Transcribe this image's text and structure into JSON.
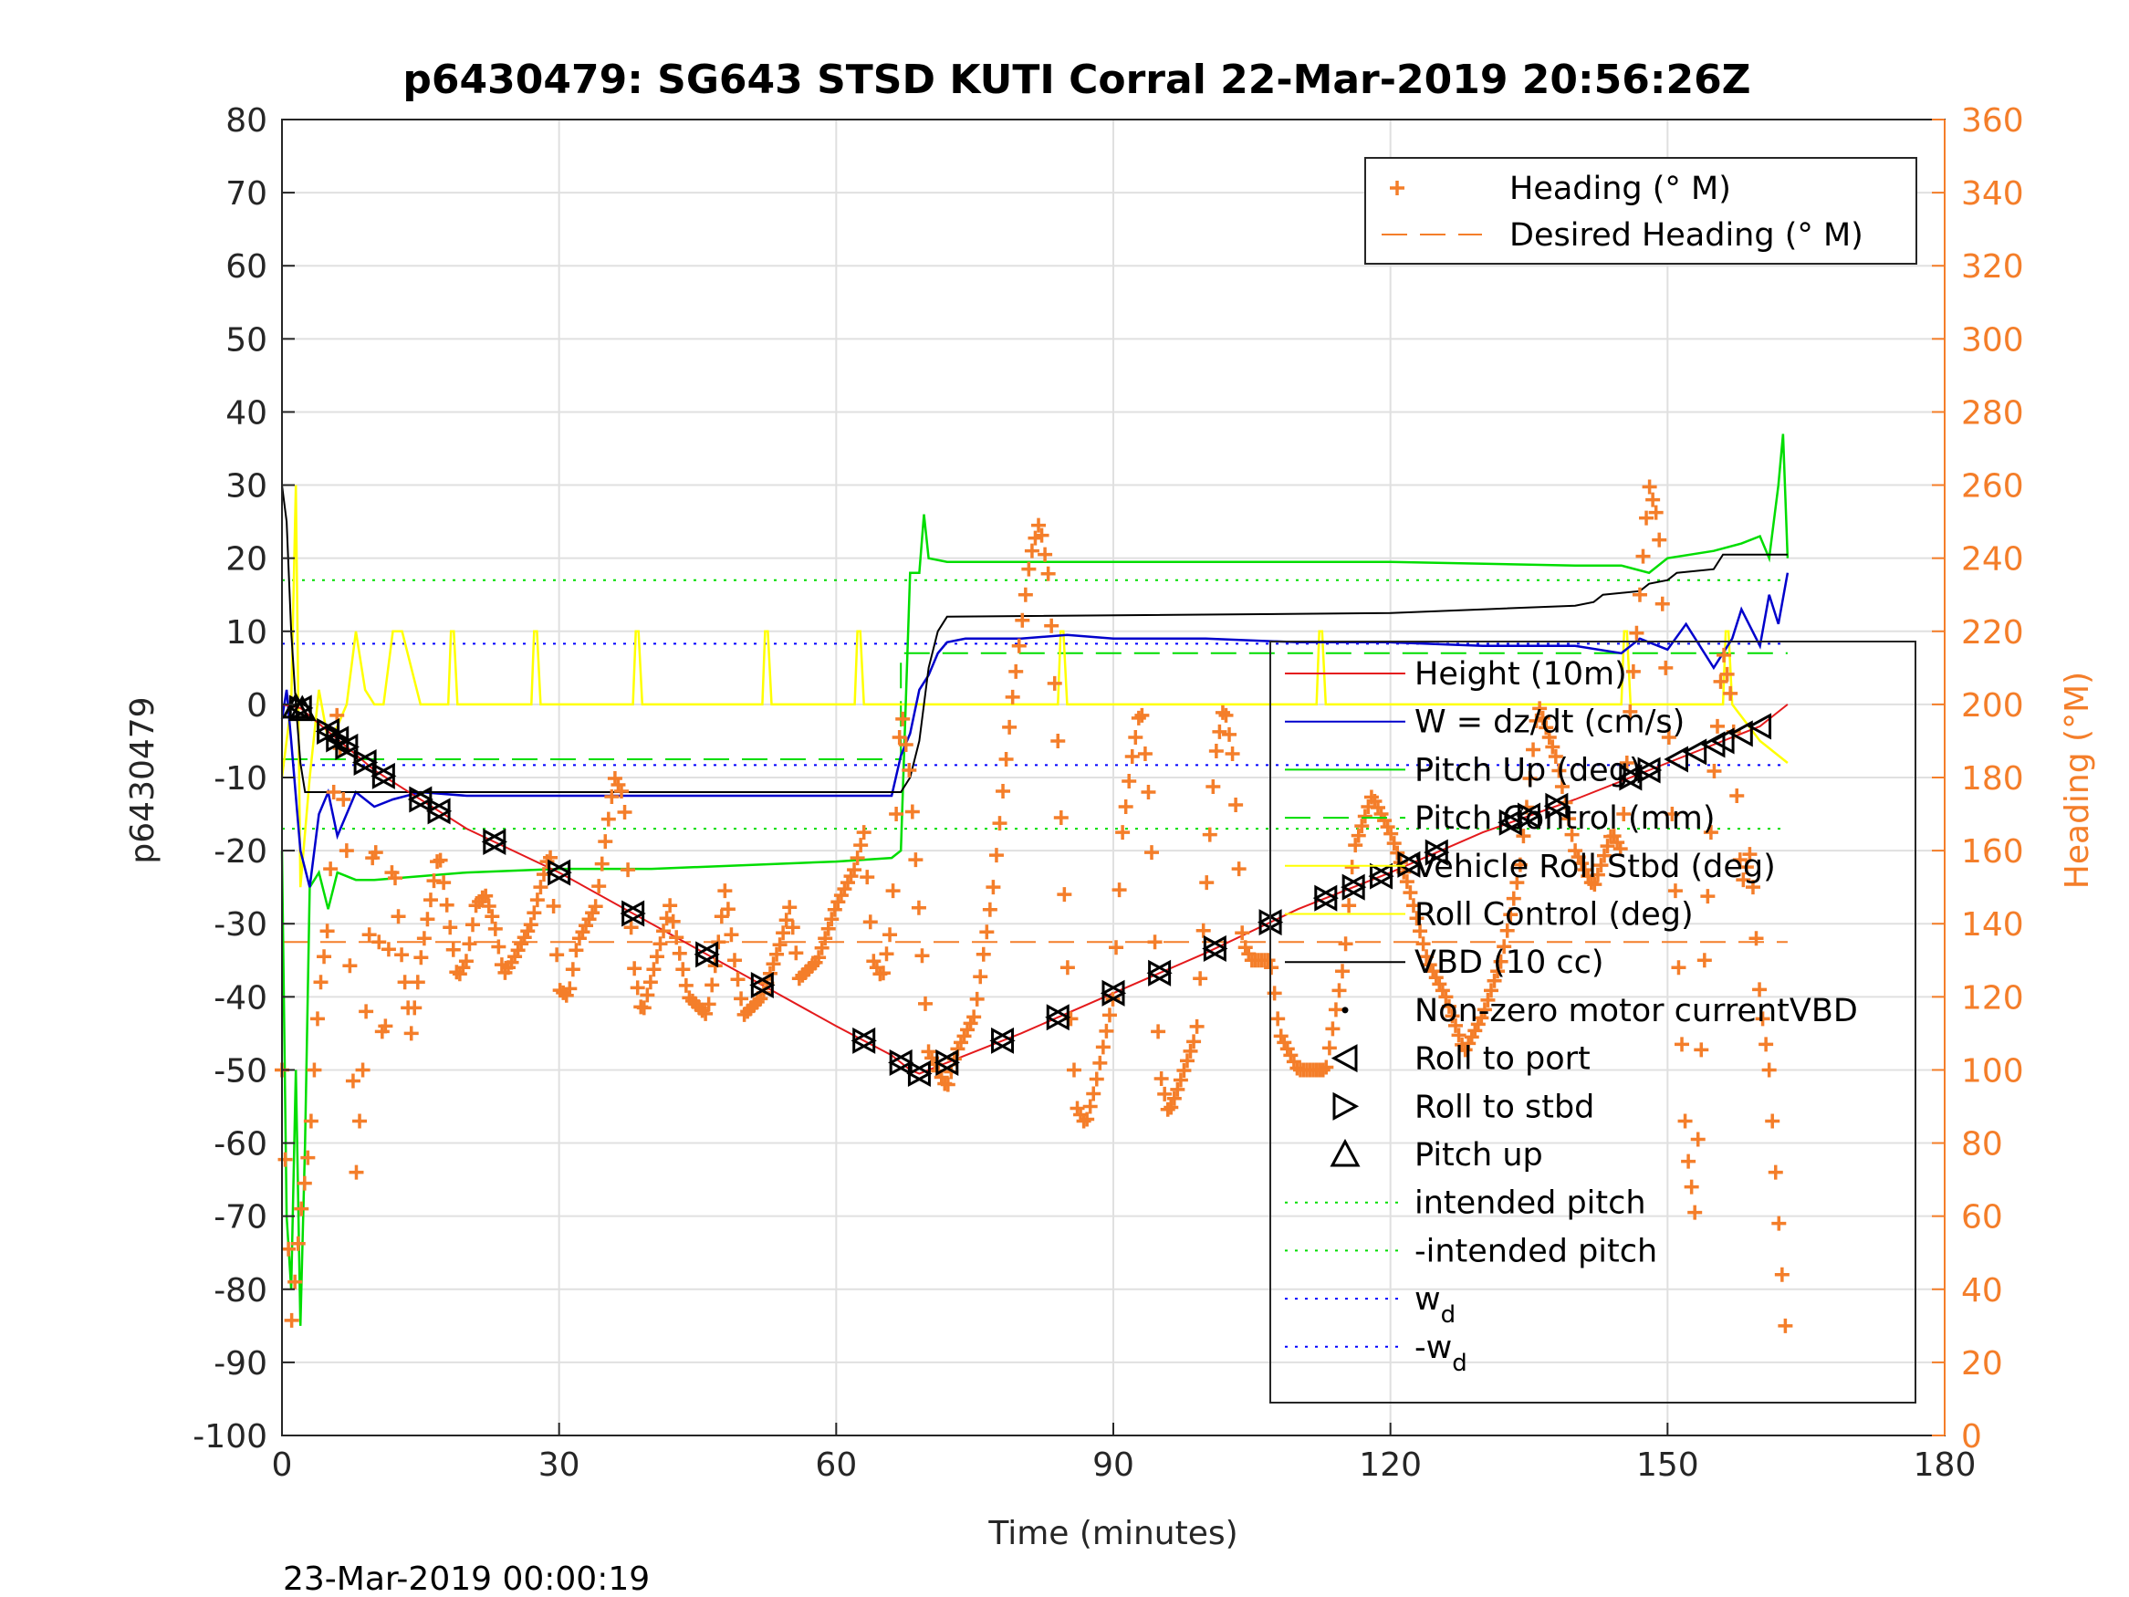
{
  "chart_data": {
    "type": "line",
    "title": "p6430479: SG643 STSD KUTI Corral 22-Mar-2019 20:56:26Z",
    "xlabel": "Time (minutes)",
    "ylabel": "p6430479",
    "y2label": "Heading (°M)",
    "footer": "23-Mar-2019 00:00:19",
    "xlim": [
      0,
      180
    ],
    "ylim": [
      -100,
      80
    ],
    "y2lim": [
      0,
      360
    ],
    "xticks": [
      "0",
      "30",
      "60",
      "90",
      "120",
      "150",
      "180"
    ],
    "yticks": [
      "80",
      "70",
      "60",
      "50",
      "40",
      "30",
      "20",
      "10",
      "0",
      "-10",
      "-20",
      "-30",
      "-40",
      "-50",
      "-60",
      "-70",
      "-80",
      "-90",
      "-100"
    ],
    "y2ticks": [
      "360",
      "340",
      "320",
      "300",
      "280",
      "260",
      "240",
      "220",
      "200",
      "180",
      "160",
      "140",
      "120",
      "100",
      "80",
      "60",
      "40",
      "20",
      "0"
    ],
    "grid": true,
    "legend_heading": [
      "Heading (° M)",
      "Desired Heading (° M)"
    ],
    "legend_main": [
      "Height (10m)",
      "W = dz/dt (cm/s)",
      "Pitch Up (deg)",
      "Pitch Control (mm)",
      "Vehicle Roll Stbd (deg)",
      "Roll Control (deg)",
      "VBD (10 cc)",
      "Non-zero motor currentVBD",
      "Roll to port",
      "Roll to stbd",
      "Pitch up",
      "intended pitch",
      "-intended pitch",
      "w",
      "-w"
    ],
    "legend_subscript": "d",
    "colors": {
      "heading": "#f47e2a",
      "height": "#e41a1c",
      "w": "#0000cc",
      "pitch": "#00dd00",
      "roll": "#ffff00",
      "vbd": "#000000",
      "wd": "#0000ff",
      "grid": "#e0e0e0"
    },
    "series": [
      {
        "name": "Height (10m)",
        "x": [
          0,
          2,
          10,
          20,
          30,
          40,
          50,
          60,
          66,
          68,
          69,
          70,
          72,
          80,
          90,
          100,
          110,
          120,
          130,
          140,
          150,
          160,
          163
        ],
        "y": [
          0,
          -0.5,
          -9,
          -17,
          -23,
          -30,
          -37,
          -44,
          -48,
          -50,
          -50.5,
          -50,
          -49,
          -45,
          -39.5,
          -34,
          -28,
          -23,
          -17.5,
          -13,
          -8,
          -3,
          0
        ]
      },
      {
        "name": "W = dz/dt (cm/s)",
        "x": [
          0,
          0.5,
          1,
          2,
          3,
          4,
          5,
          6,
          8,
          10,
          12,
          15,
          20,
          30,
          40,
          50,
          60,
          66,
          67,
          68,
          69,
          70,
          71,
          72,
          74,
          80,
          85,
          90,
          100,
          110,
          120,
          130,
          140,
          145,
          147,
          150,
          152,
          155,
          157,
          158,
          160,
          161,
          162,
          163
        ],
        "y": [
          -2,
          2,
          -5,
          -20,
          -25,
          -15,
          -12,
          -18,
          -12,
          -14,
          -13,
          -12,
          -12.5,
          -12.5,
          -12.5,
          -12.5,
          -12.5,
          -12.5,
          -7,
          -4,
          2,
          4,
          7,
          8.5,
          9,
          9,
          9.5,
          9,
          9,
          8.5,
          8.5,
          8,
          8,
          7,
          9,
          7.5,
          11,
          5,
          9,
          13,
          8,
          15,
          11,
          18
        ]
      },
      {
        "name": "Pitch Up (deg)",
        "x": [
          0,
          0.5,
          1,
          1.5,
          2,
          2.5,
          3,
          4,
          5,
          6,
          8,
          10,
          20,
          30,
          40,
          50,
          60,
          66,
          67,
          68,
          69,
          69.5,
          70,
          72,
          80,
          100,
          120,
          140,
          145,
          148,
          150,
          155,
          158,
          160,
          161,
          162,
          162.5,
          163
        ],
        "y": [
          -20,
          -70,
          -80,
          -50,
          -85,
          -60,
          -25,
          -23,
          -28,
          -23,
          -24,
          -24,
          -23,
          -22.5,
          -22.5,
          -22,
          -21.5,
          -21,
          -20,
          18,
          18,
          26,
          20,
          19.5,
          19.5,
          19.5,
          19.5,
          19,
          19,
          18,
          20,
          21,
          22,
          23,
          20,
          30,
          37,
          20
        ]
      },
      {
        "name": "Vehicle Roll Stbd (deg)",
        "x": [
          0,
          1,
          1.5,
          2,
          3,
          4,
          5,
          6,
          7,
          8,
          9,
          10,
          11,
          12,
          13,
          15,
          17,
          18,
          18.3,
          18.6,
          19,
          20,
          25,
          27,
          27.3,
          27.6,
          28,
          30,
          35,
          38,
          38.3,
          38.6,
          39,
          40,
          50,
          52,
          52.3,
          52.6,
          53,
          55,
          60,
          62,
          62.3,
          62.6,
          63,
          65,
          68,
          69,
          70,
          80,
          84,
          84.3,
          84.6,
          85,
          90,
          100,
          110,
          112,
          112.3,
          112.6,
          113,
          120,
          140,
          145,
          145.3,
          145.6,
          146,
          150,
          155,
          156,
          156.3,
          156.6,
          157,
          160,
          163
        ],
        "y": [
          -10,
          0,
          30,
          -25,
          -10,
          2,
          -5,
          -3,
          0,
          10,
          2,
          0,
          0,
          10,
          10,
          0,
          0,
          0,
          10,
          10,
          0,
          0,
          0,
          0,
          10,
          10,
          0,
          0,
          0,
          0,
          10,
          10,
          0,
          0,
          0,
          0,
          10,
          10,
          0,
          0,
          0,
          0,
          10,
          10,
          0,
          0,
          0,
          0,
          0,
          0,
          0,
          10,
          10,
          0,
          0,
          0,
          0,
          0,
          10,
          10,
          0,
          0,
          0,
          0,
          10,
          10,
          0,
          0,
          0,
          0,
          10,
          10,
          0,
          -5,
          -8
        ]
      },
      {
        "name": "VBD (10 cc)",
        "x": [
          0,
          0.5,
          1,
          1.5,
          2,
          2.5,
          67,
          68,
          69,
          70,
          71,
          72,
          120,
          130,
          140,
          142,
          143,
          147,
          148,
          150,
          151,
          155,
          156,
          163
        ],
        "y": [
          30,
          25,
          10,
          0,
          -8,
          -12,
          -12,
          -10,
          -5,
          5,
          10,
          12,
          12.5,
          13,
          13.5,
          14,
          15,
          15.5,
          16.5,
          17,
          18,
          18.5,
          20.5,
          20.5
        ]
      },
      {
        "name": "Heading (° M)",
        "x": [
          0,
          1,
          2,
          3,
          4,
          5,
          6,
          7,
          8,
          9,
          10,
          11,
          12,
          13,
          14,
          15,
          17,
          19,
          20,
          21,
          22,
          23,
          24,
          25,
          27,
          29,
          30,
          31,
          32,
          34,
          36,
          37,
          38,
          39,
          40,
          42,
          44,
          46,
          47,
          48,
          49,
          50,
          52,
          54,
          55,
          56,
          58,
          60,
          62,
          63,
          64,
          65,
          66,
          67,
          68,
          70,
          71,
          72,
          73,
          75,
          77,
          79,
          81,
          82,
          83,
          84,
          85,
          86,
          87,
          88,
          90,
          91,
          92,
          93,
          94,
          95,
          96,
          97,
          99,
          101,
          102,
          103,
          104,
          105,
          107,
          108,
          110,
          113,
          115,
          116,
          118,
          120,
          122,
          124,
          126,
          128,
          130,
          132,
          134,
          136,
          138,
          140,
          142,
          144,
          145,
          146,
          147,
          148,
          149,
          150,
          151,
          152,
          153,
          154,
          155,
          156,
          157,
          158,
          159,
          160,
          161,
          162,
          163
        ],
        "y": [
          100,
          30,
          60,
          80,
          120,
          140,
          200,
          160,
          70,
          110,
          170,
          100,
          160,
          130,
          110,
          130,
          160,
          125,
          130,
          145,
          148,
          140,
          126,
          130,
          140,
          160,
          122,
          120,
          135,
          145,
          180,
          175,
          130,
          115,
          125,
          145,
          120,
          115,
          130,
          150,
          130,
          115,
          120,
          135,
          145,
          125,
          130,
          145,
          155,
          165,
          130,
          125,
          140,
          200,
          180,
          105,
          100,
          95,
          105,
          115,
          150,
          200,
          240,
          250,
          235,
          190,
          130,
          90,
          85,
          95,
          120,
          165,
          185,
          200,
          170,
          100,
          88,
          95,
          110,
          185,
          200,
          185,
          135,
          130,
          130,
          110,
          100,
          100,
          130,
          160,
          175,
          165,
          150,
          130,
          120,
          105,
          115,
          130,
          155,
          200,
          185,
          160,
          150,
          165,
          160,
          200,
          230,
          260,
          250,
          200,
          140,
          80,
          60,
          130,
          180,
          215,
          200,
          150,
          160,
          120,
          100,
          60,
          20
        ]
      }
    ],
    "reference_lines": [
      {
        "name": "Desired Heading (° M)",
        "y2": 135,
        "axis": "right"
      },
      {
        "name": "intended pitch",
        "y": 17
      },
      {
        "name": "-intended pitch",
        "y": -17
      },
      {
        "name": "w_d",
        "y": 8.3
      },
      {
        "name": "-w_d",
        "y": -8.3
      },
      {
        "name": "Pitch Control (mm)",
        "x": [
          0,
          67,
          67,
          163
        ],
        "y": [
          -7.5,
          -7.5,
          7,
          7
        ]
      }
    ],
    "markers": {
      "Roll to port": {
        "x": [
          2,
          5,
          6,
          7,
          9,
          11,
          15,
          17,
          23,
          30,
          38,
          46,
          52,
          63,
          67,
          69,
          72,
          78,
          84,
          90,
          95,
          101,
          107,
          113,
          116,
          119,
          122,
          125,
          133,
          135,
          138,
          146,
          148,
          151,
          153,
          155,
          156,
          158,
          160
        ]
      },
      "Roll to stbd": {
        "x": [
          2,
          5,
          6,
          7,
          9,
          11,
          15,
          17,
          23,
          30,
          38,
          46,
          52,
          63,
          67,
          69,
          72,
          78,
          84,
          90,
          95,
          101,
          107,
          113,
          116,
          119,
          122,
          125,
          133,
          135,
          138,
          146,
          148
        ]
      },
      "Pitch up": {
        "x": [
          1.5,
          2.2
        ]
      }
    }
  }
}
